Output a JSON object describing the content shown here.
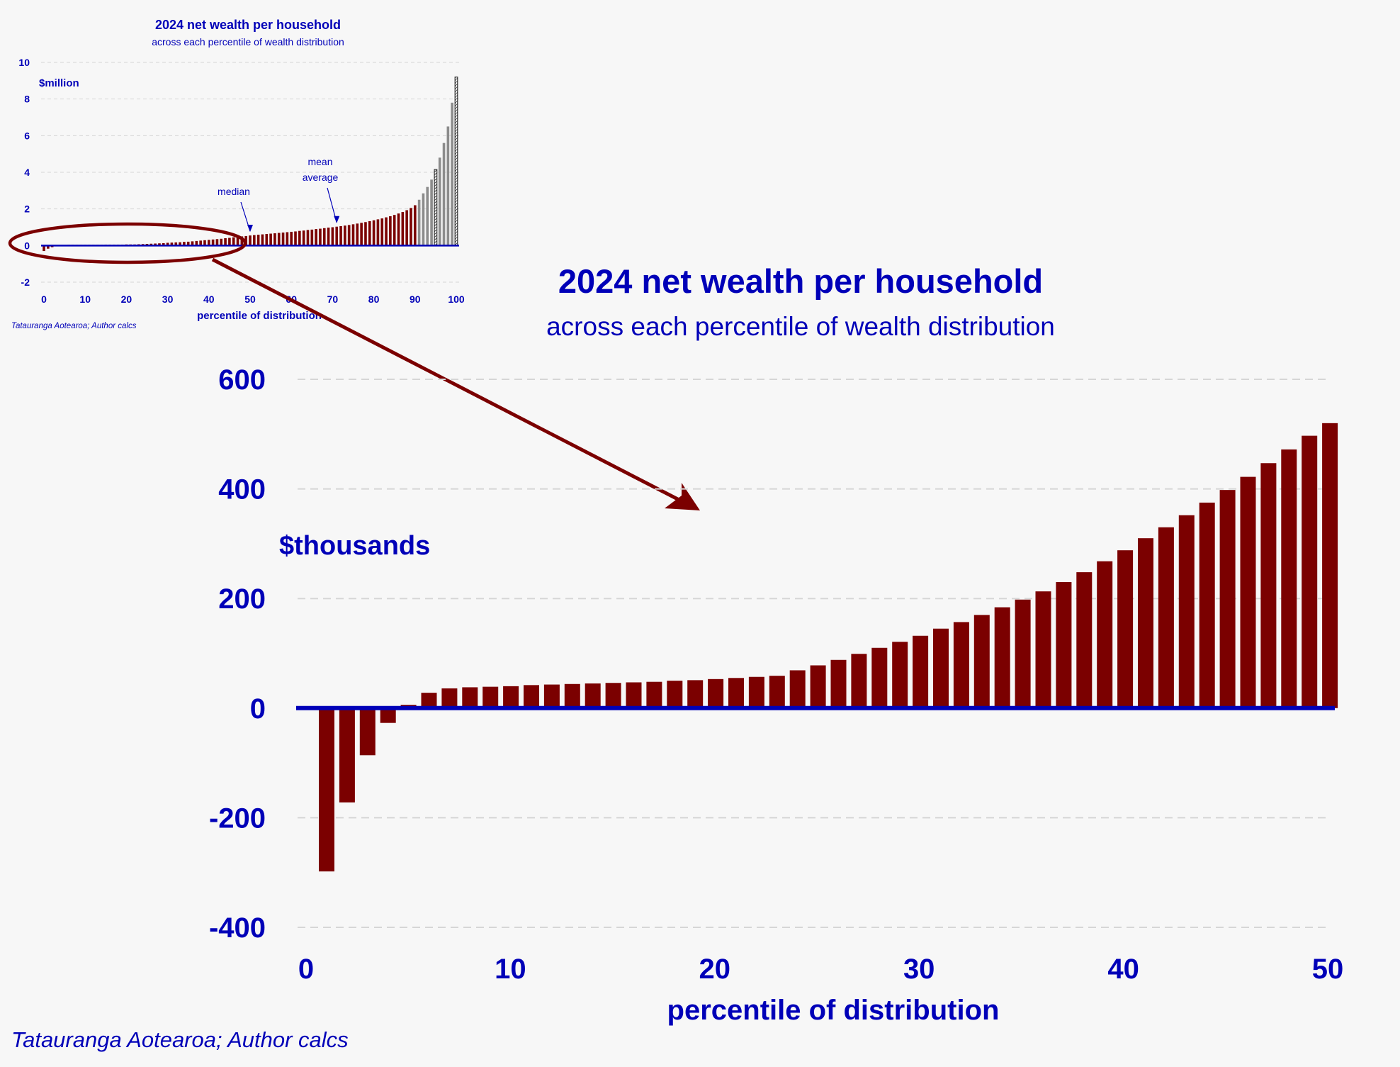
{
  "colors": {
    "background": "#f7f7f7",
    "text": "#0000b8",
    "bar": "#7b0000",
    "grey_bar": "#8c8c8c",
    "baseline": "#0000b8",
    "grid": "#d6d6d6",
    "annotation": "#7b0000"
  },
  "source_note": "Tatauranga Aotearoa; Author calcs",
  "chart_data": [
    {
      "id": "inset",
      "type": "bar",
      "title": "2024 net wealth per household",
      "subtitle": "across each percentile of wealth distribution",
      "ylabel": "$million",
      "xlabel": "percentile of distribution",
      "ylim": [
        -2,
        10
      ],
      "yticks": [
        "-2",
        "0",
        "2",
        "4",
        "6",
        "8",
        "10"
      ],
      "xlim": [
        0,
        100
      ],
      "xticks": [
        "0",
        "10",
        "20",
        "30",
        "40",
        "50",
        "60",
        "70",
        "80",
        "90",
        "100"
      ],
      "grid": true,
      "source": "Tatauranga Aotearoa; Author calcs",
      "annotations": [
        {
          "label_lines": [
            "median"
          ],
          "x": 50
        },
        {
          "label_lines": [
            "mean",
            "average"
          ],
          "x": 71
        }
      ],
      "grey_from_percentile": 91,
      "hatched_percentiles": [
        95,
        100
      ],
      "values_million": [
        -0.3,
        -0.17,
        -0.09,
        -0.03,
        0.0,
        0.03,
        0.04,
        0.04,
        0.04,
        0.04,
        0.04,
        0.04,
        0.04,
        0.04,
        0.04,
        0.05,
        0.05,
        0.05,
        0.05,
        0.05,
        0.06,
        0.06,
        0.06,
        0.07,
        0.08,
        0.09,
        0.1,
        0.11,
        0.12,
        0.13,
        0.15,
        0.16,
        0.17,
        0.18,
        0.2,
        0.21,
        0.23,
        0.25,
        0.27,
        0.29,
        0.31,
        0.33,
        0.35,
        0.37,
        0.4,
        0.42,
        0.45,
        0.47,
        0.5,
        0.52,
        0.55,
        0.57,
        0.59,
        0.61,
        0.63,
        0.65,
        0.67,
        0.69,
        0.71,
        0.73,
        0.75,
        0.77,
        0.8,
        0.82,
        0.85,
        0.87,
        0.9,
        0.92,
        0.95,
        0.98,
        1.0,
        1.03,
        1.06,
        1.09,
        1.12,
        1.16,
        1.2,
        1.24,
        1.28,
        1.33,
        1.38,
        1.43,
        1.48,
        1.54,
        1.6,
        1.67,
        1.75,
        1.83,
        1.93,
        2.05,
        2.2,
        2.5,
        2.85,
        3.2,
        3.6,
        4.15,
        4.8,
        5.6,
        6.5,
        7.8,
        9.2
      ]
    },
    {
      "id": "main",
      "type": "bar",
      "title": "2024 net wealth per household",
      "subtitle": "across each percentile of wealth distribution",
      "ylabel": "$thousands",
      "xlabel": "percentile of distribution",
      "ylim": [
        -400,
        600
      ],
      "yticks": [
        "-400",
        "-200",
        "0",
        "200",
        "400",
        "600"
      ],
      "xlim": [
        0,
        50
      ],
      "xticks": [
        "0",
        "10",
        "20",
        "30",
        "40",
        "50"
      ],
      "grid": true,
      "x": [
        1,
        2,
        3,
        4,
        5,
        6,
        7,
        8,
        9,
        10,
        11,
        12,
        13,
        14,
        15,
        16,
        17,
        18,
        19,
        20,
        21,
        22,
        23,
        24,
        25,
        26,
        27,
        28,
        29,
        30,
        31,
        32,
        33,
        34,
        35,
        36,
        37,
        38,
        39,
        40,
        41,
        42,
        43,
        44,
        45,
        46,
        47,
        48,
        49,
        50
      ],
      "values": [
        -298,
        -172,
        -86,
        -27,
        6,
        28,
        36,
        38,
        39,
        40,
        42,
        43,
        44,
        45,
        46,
        47,
        48,
        50,
        51,
        53,
        55,
        57,
        59,
        69,
        78,
        88,
        99,
        110,
        121,
        132,
        145,
        157,
        170,
        184,
        198,
        213,
        230,
        248,
        268,
        288,
        310,
        330,
        352,
        375,
        398,
        422,
        447,
        472,
        497,
        520
      ]
    }
  ]
}
